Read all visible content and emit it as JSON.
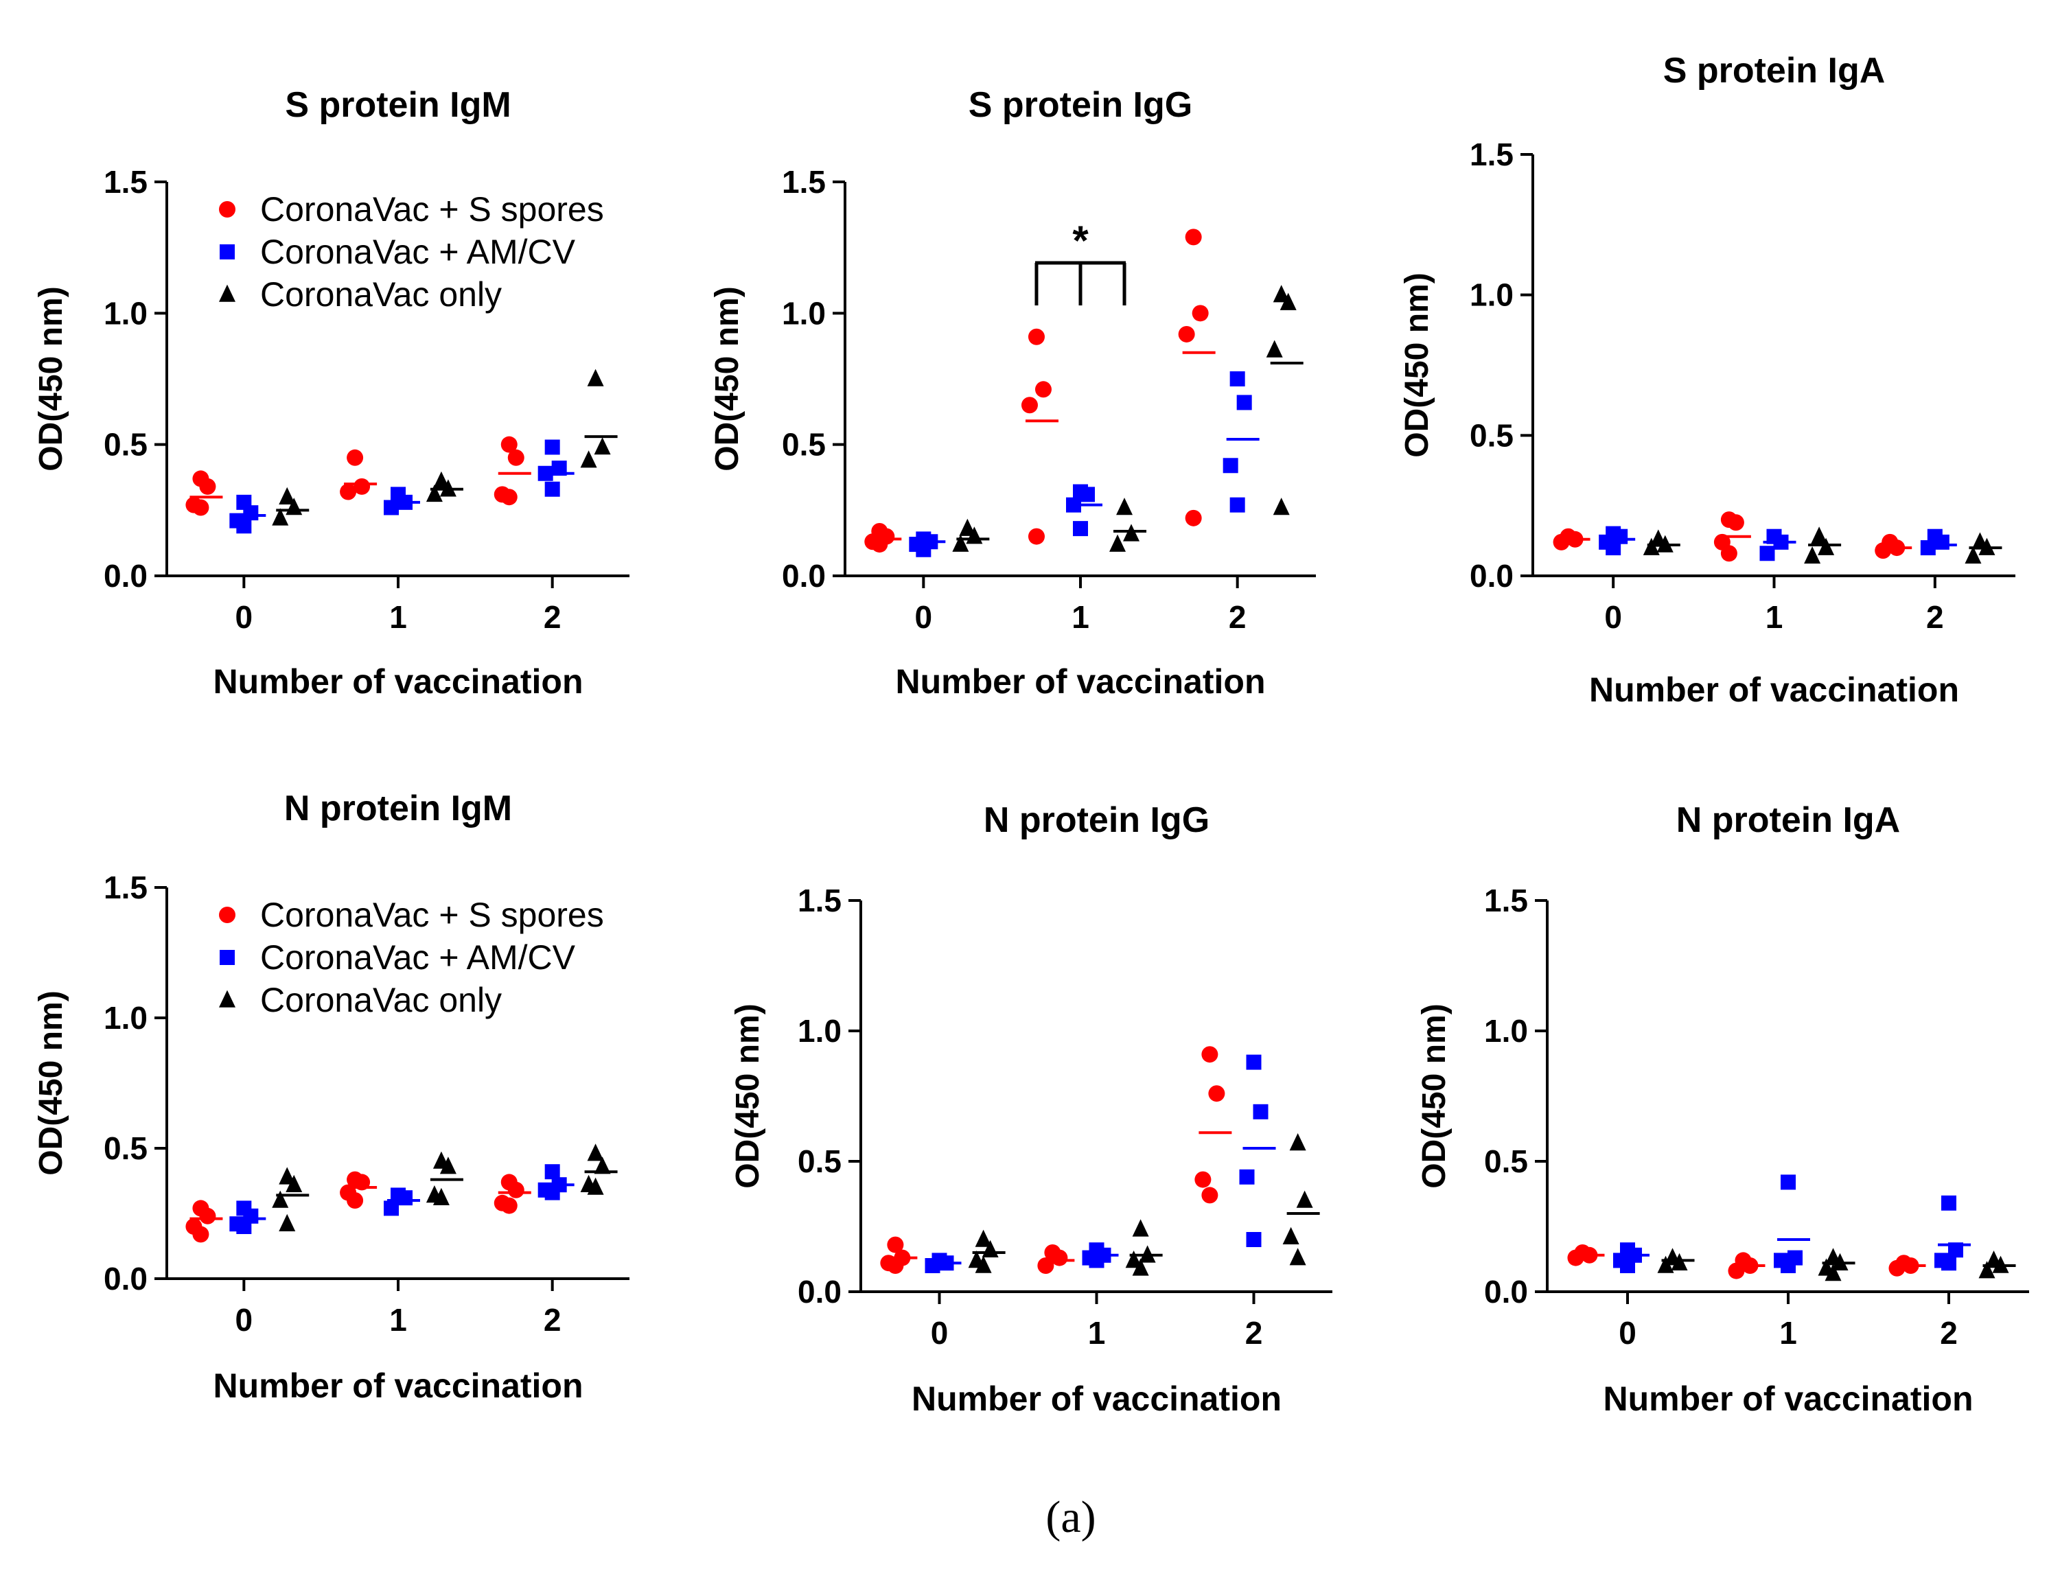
{
  "figure_caption": "(a)",
  "colors": {
    "series1": "#ff0000",
    "series2": "#0000ff",
    "series3": "#000000"
  },
  "chart_data": [
    {
      "type": "scatter",
      "title": "S protein IgM",
      "xlabel": "Number of vaccination",
      "ylabel": "OD(450 nm)",
      "ylim": [
        0,
        1.5
      ],
      "yticks": [
        "0.0",
        "0.5",
        "1.0",
        "1.5"
      ],
      "categories": [
        "0",
        "1",
        "2"
      ],
      "legend": [
        "CoronaVac + S spores",
        "CoronaVac + AM/CV",
        "CoronaVac only"
      ],
      "series": [
        {
          "name": "CoronaVac + S spores",
          "marker": "circle",
          "color": "#ff0000",
          "points": [
            [
              0,
              0.37
            ],
            [
              0,
              0.34
            ],
            [
              0,
              0.27
            ],
            [
              0,
              0.26
            ],
            [
              1,
              0.45
            ],
            [
              1,
              0.34
            ],
            [
              1,
              0.32
            ],
            [
              2,
              0.5
            ],
            [
              2,
              0.45
            ],
            [
              2,
              0.31
            ],
            [
              2,
              0.3
            ]
          ],
          "means": [
            0.3,
            0.35,
            0.39
          ]
        },
        {
          "name": "CoronaVac + AM/CV",
          "marker": "square",
          "color": "#0000ff",
          "points": [
            [
              0,
              0.28
            ],
            [
              0,
              0.24
            ],
            [
              0,
              0.21
            ],
            [
              0,
              0.19
            ],
            [
              1,
              0.31
            ],
            [
              1,
              0.28
            ],
            [
              1,
              0.26
            ],
            [
              2,
              0.49
            ],
            [
              2,
              0.41
            ],
            [
              2,
              0.39
            ],
            [
              2,
              0.33
            ]
          ],
          "means": [
            0.23,
            0.28,
            0.39
          ]
        },
        {
          "name": "CoronaVac only",
          "marker": "triangle",
          "color": "#000000",
          "points": [
            [
              0,
              0.3
            ],
            [
              0,
              0.26
            ],
            [
              0,
              0.22
            ],
            [
              1,
              0.36
            ],
            [
              1,
              0.33
            ],
            [
              1,
              0.31
            ],
            [
              2,
              0.75
            ],
            [
              2,
              0.49
            ],
            [
              2,
              0.44
            ]
          ],
          "means": [
            0.25,
            0.33,
            0.53
          ]
        }
      ]
    },
    {
      "type": "scatter",
      "title": "S protein IgG",
      "xlabel": "Number of vaccination",
      "ylabel": "OD(450 nm)",
      "ylim": [
        0,
        1.5
      ],
      "yticks": [
        "0.0",
        "0.5",
        "1.0",
        "1.5"
      ],
      "categories": [
        "0",
        "1",
        "2"
      ],
      "annotation": "*",
      "series": [
        {
          "name": "CoronaVac + S spores",
          "marker": "circle",
          "color": "#ff0000",
          "points": [
            [
              0,
              0.17
            ],
            [
              0,
              0.15
            ],
            [
              0,
              0.13
            ],
            [
              0,
              0.12
            ],
            [
              1,
              0.91
            ],
            [
              1,
              0.71
            ],
            [
              1,
              0.65
            ],
            [
              1,
              0.15
            ],
            [
              2,
              1.29
            ],
            [
              2,
              1.0
            ],
            [
              2,
              0.92
            ],
            [
              2,
              0.22
            ]
          ],
          "means": [
            0.14,
            0.59,
            0.85
          ]
        },
        {
          "name": "CoronaVac + AM/CV",
          "marker": "square",
          "color": "#0000ff",
          "points": [
            [
              0,
              0.14
            ],
            [
              0,
              0.13
            ],
            [
              0,
              0.12
            ],
            [
              0,
              0.1
            ],
            [
              1,
              0.32
            ],
            [
              1,
              0.31
            ],
            [
              1,
              0.27
            ],
            [
              1,
              0.18
            ],
            [
              2,
              0.75
            ],
            [
              2,
              0.66
            ],
            [
              2,
              0.42
            ],
            [
              2,
              0.27
            ]
          ],
          "means": [
            0.13,
            0.27,
            0.52
          ]
        },
        {
          "name": "CoronaVac only",
          "marker": "triangle",
          "color": "#000000",
          "points": [
            [
              0,
              0.18
            ],
            [
              0,
              0.15
            ],
            [
              0,
              0.12
            ],
            [
              1,
              0.26
            ],
            [
              1,
              0.16
            ],
            [
              1,
              0.12
            ],
            [
              2,
              1.07
            ],
            [
              2,
              1.04
            ],
            [
              2,
              0.86
            ],
            [
              2,
              0.26
            ]
          ],
          "means": [
            0.14,
            0.17,
            0.81
          ]
        }
      ]
    },
    {
      "type": "scatter",
      "title": "S protein IgA",
      "xlabel": "Number of vaccination",
      "ylabel": "OD(450 nm)",
      "ylim": [
        0,
        1.5
      ],
      "yticks": [
        "0.0",
        "0.5",
        "1.0",
        "1.5"
      ],
      "categories": [
        "0",
        "1",
        "2"
      ],
      "series": [
        {
          "name": "CoronaVac + S spores",
          "marker": "circle",
          "color": "#ff0000",
          "points": [
            [
              0,
              0.14
            ],
            [
              0,
              0.13
            ],
            [
              0,
              0.12
            ],
            [
              1,
              0.2
            ],
            [
              1,
              0.19
            ],
            [
              1,
              0.12
            ],
            [
              1,
              0.08
            ],
            [
              2,
              0.12
            ],
            [
              2,
              0.1
            ],
            [
              2,
              0.09
            ]
          ],
          "means": [
            0.13,
            0.14,
            0.1
          ]
        },
        {
          "name": "CoronaVac + AM/CV",
          "marker": "square",
          "color": "#0000ff",
          "points": [
            [
              0,
              0.15
            ],
            [
              0,
              0.14
            ],
            [
              0,
              0.12
            ],
            [
              0,
              0.1
            ],
            [
              1,
              0.14
            ],
            [
              1,
              0.12
            ],
            [
              1,
              0.08
            ],
            [
              2,
              0.14
            ],
            [
              2,
              0.12
            ],
            [
              2,
              0.1
            ]
          ],
          "means": [
            0.13,
            0.12,
            0.11
          ]
        },
        {
          "name": "CoronaVac only",
          "marker": "triangle",
          "color": "#000000",
          "points": [
            [
              0,
              0.13
            ],
            [
              0,
              0.11
            ],
            [
              0,
              0.1
            ],
            [
              1,
              0.14
            ],
            [
              1,
              0.1
            ],
            [
              1,
              0.07
            ],
            [
              2,
              0.12
            ],
            [
              2,
              0.1
            ],
            [
              2,
              0.07
            ]
          ],
          "means": [
            0.11,
            0.11,
            0.1
          ]
        }
      ]
    },
    {
      "type": "scatter",
      "title": "N protein IgM",
      "xlabel": "Number of vaccination",
      "ylabel": "OD(450 nm)",
      "ylim": [
        0,
        1.5
      ],
      "yticks": [
        "0.0",
        "0.5",
        "1.0",
        "1.5"
      ],
      "categories": [
        "0",
        "1",
        "2"
      ],
      "legend": [
        "CoronaVac + S spores",
        "CoronaVac + AM/CV",
        "CoronaVac only"
      ],
      "series": [
        {
          "name": "CoronaVac + S spores",
          "marker": "circle",
          "color": "#ff0000",
          "points": [
            [
              0,
              0.27
            ],
            [
              0,
              0.24
            ],
            [
              0,
              0.2
            ],
            [
              0,
              0.17
            ],
            [
              1,
              0.38
            ],
            [
              1,
              0.37
            ],
            [
              1,
              0.33
            ],
            [
              1,
              0.3
            ],
            [
              2,
              0.37
            ],
            [
              2,
              0.34
            ],
            [
              2,
              0.29
            ],
            [
              2,
              0.28
            ]
          ],
          "means": [
            0.23,
            0.35,
            0.33
          ]
        },
        {
          "name": "CoronaVac + AM/CV",
          "marker": "square",
          "color": "#0000ff",
          "points": [
            [
              0,
              0.27
            ],
            [
              0,
              0.24
            ],
            [
              0,
              0.21
            ],
            [
              0,
              0.2
            ],
            [
              1,
              0.32
            ],
            [
              1,
              0.31
            ],
            [
              1,
              0.27
            ],
            [
              2,
              0.41
            ],
            [
              2,
              0.36
            ],
            [
              2,
              0.34
            ],
            [
              2,
              0.33
            ]
          ],
          "means": [
            0.23,
            0.3,
            0.36
          ]
        },
        {
          "name": "CoronaVac only",
          "marker": "triangle",
          "color": "#000000",
          "points": [
            [
              0,
              0.39
            ],
            [
              0,
              0.36
            ],
            [
              0,
              0.3
            ],
            [
              0,
              0.21
            ],
            [
              1,
              0.45
            ],
            [
              1,
              0.43
            ],
            [
              1,
              0.32
            ],
            [
              1,
              0.31
            ],
            [
              2,
              0.48
            ],
            [
              2,
              0.43
            ],
            [
              2,
              0.36
            ],
            [
              2,
              0.35
            ]
          ],
          "means": [
            0.32,
            0.38,
            0.41
          ]
        }
      ]
    },
    {
      "type": "scatter",
      "title": "N protein IgG",
      "xlabel": "Number of vaccination",
      "ylabel": "OD(450 nm)",
      "ylim": [
        0,
        1.5
      ],
      "yticks": [
        "0.0",
        "0.5",
        "1.0",
        "1.5"
      ],
      "categories": [
        "0",
        "1",
        "2"
      ],
      "series": [
        {
          "name": "CoronaVac + S spores",
          "marker": "circle",
          "color": "#ff0000",
          "points": [
            [
              0,
              0.18
            ],
            [
              0,
              0.13
            ],
            [
              0,
              0.11
            ],
            [
              0,
              0.1
            ],
            [
              1,
              0.15
            ],
            [
              1,
              0.13
            ],
            [
              1,
              0.1
            ],
            [
              2,
              0.91
            ],
            [
              2,
              0.76
            ],
            [
              2,
              0.43
            ],
            [
              2,
              0.37
            ]
          ],
          "means": [
            0.13,
            0.12,
            0.61
          ]
        },
        {
          "name": "CoronaVac + AM/CV",
          "marker": "square",
          "color": "#0000ff",
          "points": [
            [
              0,
              0.12
            ],
            [
              0,
              0.11
            ],
            [
              0,
              0.1
            ],
            [
              1,
              0.16
            ],
            [
              1,
              0.14
            ],
            [
              1,
              0.13
            ],
            [
              1,
              0.12
            ],
            [
              2,
              0.88
            ],
            [
              2,
              0.69
            ],
            [
              2,
              0.44
            ],
            [
              2,
              0.2
            ]
          ],
          "means": [
            0.11,
            0.14,
            0.55
          ]
        },
        {
          "name": "CoronaVac only",
          "marker": "triangle",
          "color": "#000000",
          "points": [
            [
              0,
              0.2
            ],
            [
              0,
              0.16
            ],
            [
              0,
              0.12
            ],
            [
              0,
              0.1
            ],
            [
              1,
              0.24
            ],
            [
              1,
              0.14
            ],
            [
              1,
              0.12
            ],
            [
              1,
              0.09
            ],
            [
              2,
              0.57
            ],
            [
              2,
              0.35
            ],
            [
              2,
              0.21
            ],
            [
              2,
              0.13
            ]
          ],
          "means": [
            0.15,
            0.14,
            0.3
          ]
        }
      ]
    },
    {
      "type": "scatter",
      "title": "N protein IgA",
      "xlabel": "Number of vaccination",
      "ylabel": "OD(450 nm)",
      "ylim": [
        0,
        1.5
      ],
      "yticks": [
        "0.0",
        "0.5",
        "1.0",
        "1.5"
      ],
      "categories": [
        "0",
        "1",
        "2"
      ],
      "series": [
        {
          "name": "CoronaVac + S spores",
          "marker": "circle",
          "color": "#ff0000",
          "points": [
            [
              0,
              0.15
            ],
            [
              0,
              0.14
            ],
            [
              0,
              0.13
            ],
            [
              1,
              0.12
            ],
            [
              1,
              0.1
            ],
            [
              1,
              0.08
            ],
            [
              2,
              0.11
            ],
            [
              2,
              0.1
            ],
            [
              2,
              0.09
            ]
          ],
          "means": [
            0.14,
            0.1,
            0.1
          ]
        },
        {
          "name": "CoronaVac + AM/CV",
          "marker": "square",
          "color": "#0000ff",
          "points": [
            [
              0,
              0.16
            ],
            [
              0,
              0.14
            ],
            [
              0,
              0.12
            ],
            [
              0,
              0.1
            ],
            [
              1,
              0.42
            ],
            [
              1,
              0.13
            ],
            [
              1,
              0.12
            ],
            [
              1,
              0.1
            ],
            [
              2,
              0.34
            ],
            [
              2,
              0.16
            ],
            [
              2,
              0.12
            ],
            [
              2,
              0.11
            ]
          ],
          "means": [
            0.14,
            0.2,
            0.18
          ]
        },
        {
          "name": "CoronaVac only",
          "marker": "triangle",
          "color": "#000000",
          "points": [
            [
              0,
              0.13
            ],
            [
              0,
              0.11
            ],
            [
              0,
              0.1
            ],
            [
              1,
              0.13
            ],
            [
              1,
              0.11
            ],
            [
              1,
              0.09
            ],
            [
              1,
              0.07
            ],
            [
              2,
              0.12
            ],
            [
              2,
              0.1
            ],
            [
              2,
              0.08
            ]
          ],
          "means": [
            0.12,
            0.11,
            0.1
          ]
        }
      ]
    }
  ]
}
